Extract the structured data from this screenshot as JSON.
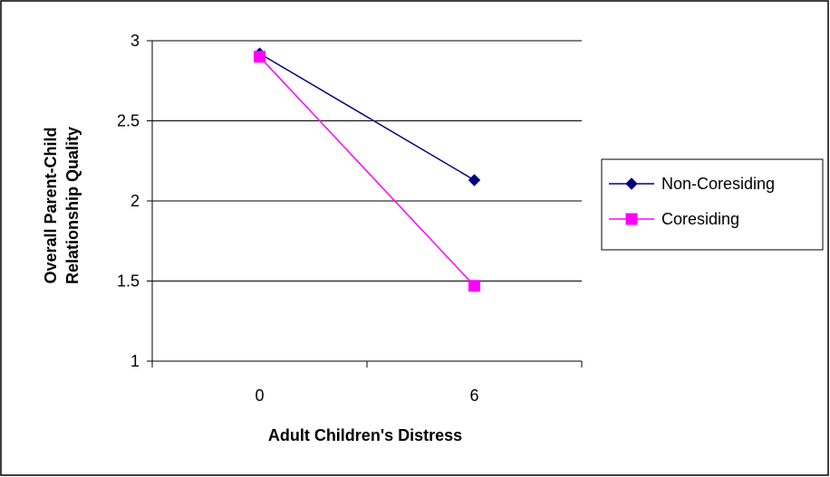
{
  "chart_data": {
    "type": "line",
    "title": "",
    "xlabel": "Adult Children's Distress",
    "ylabel_lines": [
      "Overall Parent-Child",
      "Relationship Quality"
    ],
    "categories": [
      "0",
      "6"
    ],
    "ylim": [
      1,
      3
    ],
    "yticks": [
      "1",
      "1.5",
      "2",
      "2.5",
      "3"
    ],
    "grid": true,
    "legend_position": "right",
    "series": [
      {
        "name": "Non-Coresiding",
        "values": [
          2.92,
          2.13
        ],
        "color": "#000080",
        "marker": "diamond"
      },
      {
        "name": "Coresiding",
        "values": [
          2.9,
          1.47
        ],
        "color": "#FF00FF",
        "marker": "square"
      }
    ]
  }
}
